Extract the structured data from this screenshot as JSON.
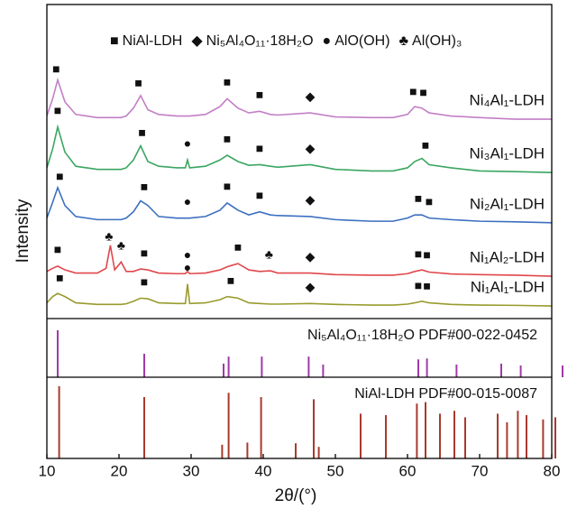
{
  "chart_data": {
    "type": "line",
    "x_label": "2θ/(°)",
    "y_label": "Intensity",
    "xlim": [
      10,
      80
    ],
    "xticks": [
      10,
      20,
      30,
      40,
      50,
      60,
      70,
      80
    ],
    "ylim": [
      0,
      100
    ],
    "legend": [
      {
        "symbol": "■",
        "label": "NiAl-LDH"
      },
      {
        "symbol": "◆",
        "label": "Ni₅Al₄O₁₁·18H₂O"
      },
      {
        "symbol": "●",
        "label": "AlO(OH)"
      },
      {
        "symbol": "♣",
        "label": "Al(OH)₃"
      }
    ],
    "x": [
      10,
      10.8,
      11.5,
      12.5,
      14,
      17,
      18.2,
      18.8,
      19.4,
      20.3,
      21,
      22,
      23,
      24,
      25.5,
      28,
      29.2,
      29.5,
      29.8,
      32,
      34,
      35,
      36.5,
      38,
      39.5,
      41,
      42,
      46.5,
      50,
      55,
      58,
      60,
      61,
      62,
      63,
      66,
      70,
      75,
      80
    ],
    "series": [
      {
        "name": "Ni₄Al₁-LDH",
        "color": "#c27fc6",
        "values": [
          64.5,
          70,
          76,
          69,
          65,
          64,
          64,
          64,
          64,
          64,
          64.5,
          67,
          71,
          66.5,
          65,
          64.5,
          64.5,
          64.5,
          64.5,
          65,
          67.5,
          70,
          67,
          65.5,
          66,
          65,
          64.8,
          65.5,
          64.2,
          64,
          64,
          65,
          67.5,
          67,
          65.5,
          64.5,
          64,
          63.5,
          63.5
        ],
        "markers": [
          {
            "symbol": "■",
            "x": 11.3
          },
          {
            "symbol": "■",
            "x": 22.7
          },
          {
            "symbol": "■",
            "x": 35
          },
          {
            "symbol": "■",
            "x": 39.5
          },
          {
            "symbol": "◆",
            "x": 46.5
          },
          {
            "symbol": "■",
            "x": 60.8
          },
          {
            "symbol": "■",
            "x": 62.2
          }
        ]
      },
      {
        "name": "Ni₃Al₁-LDH",
        "color": "#3aa661",
        "values": [
          48,
          54,
          61,
          53,
          48.5,
          47.5,
          47.5,
          47.5,
          47.5,
          47.5,
          48,
          50.5,
          55,
          50,
          48.5,
          48,
          48,
          50.5,
          48,
          48.5,
          50.5,
          52,
          50,
          48.8,
          49,
          48.5,
          48.2,
          49,
          47.5,
          47,
          47,
          48,
          50,
          51,
          49,
          48,
          47,
          46.8,
          46.5
        ],
        "markers": [
          {
            "symbol": "■",
            "x": 11.5
          },
          {
            "symbol": "■",
            "x": 23.2
          },
          {
            "symbol": "●",
            "x": 29.5
          },
          {
            "symbol": "■",
            "x": 35
          },
          {
            "symbol": "■",
            "x": 39.5
          },
          {
            "symbol": "◆",
            "x": 46.5
          },
          {
            "symbol": "■",
            "x": 62.5
          }
        ]
      },
      {
        "name": "Ni₂Al₁-LDH",
        "color": "#3c6fbf",
        "values": [
          32,
          37,
          41.7,
          36,
          32.5,
          31.5,
          31.5,
          31.5,
          31.5,
          31.5,
          32,
          34,
          37.5,
          36,
          32.5,
          32,
          32,
          32,
          32,
          32.5,
          34.5,
          36.8,
          34.5,
          33,
          34,
          33,
          32.8,
          32.5,
          31.5,
          31,
          31,
          32,
          33,
          33,
          32,
          31.5,
          31,
          30.8,
          30.5
        ],
        "markers": [
          {
            "symbol": "■",
            "x": 11.8
          },
          {
            "symbol": "■",
            "x": 23.5
          },
          {
            "symbol": "●",
            "x": 29.5
          },
          {
            "symbol": "■",
            "x": 35
          },
          {
            "symbol": "■",
            "x": 39.5
          },
          {
            "symbol": "◆",
            "x": 46.5
          },
          {
            "symbol": "■",
            "x": 61.5
          },
          {
            "symbol": "■",
            "x": 63
          }
        ]
      },
      {
        "name": "Ni₁Al₂-LDH",
        "color": "#e0474c",
        "values": [
          15,
          16,
          16.7,
          15.5,
          14.5,
          14.5,
          16,
          23.3,
          15.5,
          18,
          15,
          15,
          15.8,
          15.5,
          14.5,
          14.3,
          14.3,
          15,
          14.3,
          14.5,
          15.5,
          16.5,
          17.5,
          15.5,
          15,
          15.2,
          14.5,
          14.5,
          14,
          13.8,
          13.8,
          14.3,
          15,
          15.5,
          14.8,
          14.2,
          14,
          13.8,
          13.5
        ],
        "markers": [
          {
            "symbol": "■",
            "x": 11.5
          },
          {
            "symbol": "♣",
            "x": 18.6
          },
          {
            "symbol": "♣",
            "x": 20.3
          },
          {
            "symbol": "■",
            "x": 23.5
          },
          {
            "symbol": "●",
            "x": 29.5
          },
          {
            "symbol": "■",
            "x": 36.5
          },
          {
            "symbol": "♣",
            "x": 40.8
          },
          {
            "symbol": "◆",
            "x": 46.5
          },
          {
            "symbol": "■",
            "x": 61.5
          },
          {
            "symbol": "■",
            "x": 62.7
          }
        ]
      },
      {
        "name": "Ni₁Al₁-LDH",
        "color": "#9a9a2e",
        "values": [
          5,
          7,
          8,
          7,
          5,
          4.5,
          4.5,
          4.5,
          4.5,
          4.5,
          4.7,
          5.5,
          6.5,
          6.3,
          5,
          4.8,
          4.8,
          11,
          4.8,
          5,
          6,
          7,
          6.5,
          5,
          4.8,
          4.6,
          4.6,
          4.8,
          4.5,
          4.3,
          4.3,
          4.6,
          5,
          5.5,
          5,
          4.5,
          4.3,
          4.2,
          4
        ],
        "markers": [
          {
            "symbol": "■",
            "x": 11.8
          },
          {
            "symbol": "■",
            "x": 23.5
          },
          {
            "symbol": "●",
            "x": 29.5
          },
          {
            "symbol": "■",
            "x": 35.5
          },
          {
            "symbol": "◆",
            "x": 46.5
          },
          {
            "symbol": "■",
            "x": 61.5
          },
          {
            "symbol": "■",
            "x": 62.7
          }
        ]
      }
    ],
    "references": [
      {
        "label": "Ni₅Al₄O₁₁·18H₂O PDF#00-022-0452",
        "color": "#a03aa8",
        "ylim": [
          0,
          125
        ],
        "positions": [
          11.5,
          23.5,
          34.5,
          35.2,
          39.8,
          46.3,
          48.3,
          61.5,
          62.7,
          66.8,
          73,
          75.7,
          81.5
        ],
        "intensities": [
          100,
          50,
          29,
          44,
          44,
          44,
          27,
          38,
          40,
          27,
          29,
          25,
          25
        ]
      },
      {
        "label": "NiAl-LDH PDF#00-015-0087",
        "color": "#a83a2e",
        "ylim": [
          0,
          112.5
        ],
        "positions": [
          11.7,
          23.5,
          34.3,
          35.2,
          37.8,
          39.7,
          44.5,
          47,
          47.7,
          53.5,
          57,
          61.3,
          62.5,
          64.5,
          66.5,
          68,
          72.5,
          73.8,
          75.3,
          76.5,
          78.8,
          80.5
        ],
        "intensities": [
          100,
          85,
          19,
          91,
          22,
          85,
          21,
          82,
          16,
          62,
          60,
          76,
          78,
          62,
          66,
          57,
          62,
          50,
          66,
          60,
          54,
          57
        ]
      }
    ]
  }
}
